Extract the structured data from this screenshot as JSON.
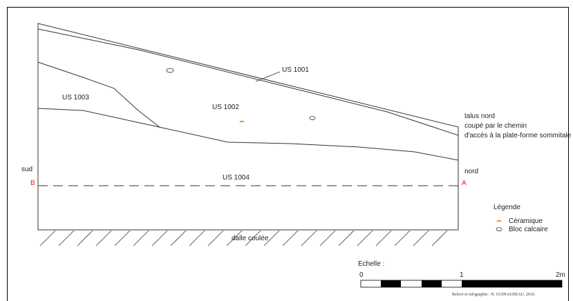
{
  "labels": {
    "us1001": "US 1001",
    "us1002": "US 1002",
    "us1003": "US 1003",
    "us1004": "US 1004",
    "talus_line1": "talus nord",
    "talus_line2": "coupé par le chemin",
    "talus_line3": "d'accès à la plate-forme sommitale",
    "sud": "sud",
    "nord": "nord",
    "point_b": "B",
    "point_a": "A",
    "dalle": "dalle coulée"
  },
  "legend": {
    "title": "Légende",
    "items": [
      {
        "label": "Céramique",
        "icon": "ceramic-icon"
      },
      {
        "label": "Bloc calcaire",
        "icon": "limestone-block-icon"
      }
    ]
  },
  "scale": {
    "title": "Echelle :",
    "tick_0": "0",
    "tick_1": "1",
    "tick_2": "2m"
  },
  "credit": "Relevé et infographie : N. GUINAUDEAU. 2010.",
  "colors": {
    "line": "#333333",
    "section_marker": "#e02020",
    "ceramic": "#e07a1a"
  }
}
